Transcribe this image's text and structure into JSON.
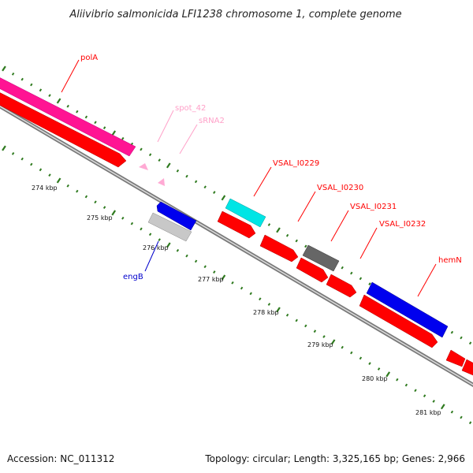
{
  "title": "Aliivibrio salmonicida LFI1238 chromosome 1, complete genome",
  "footer": {
    "accession": "Accession: NC_011312",
    "summary": "Topology: circular; Length: 3,325,165 bp; Genes: 2,966"
  },
  "kbp_labels": [
    "274 kbp",
    "275 kbp",
    "276 kbp",
    "277 kbp",
    "278 kbp",
    "279 kbp",
    "280 kbp",
    "281 kbp"
  ],
  "colors": {
    "backbone": "#888888",
    "tick": "#2f7a1f",
    "forward_cds": "#ff0000",
    "reverse_cds": "#0000ff",
    "rrna_pink": "#ff1493",
    "srna": "#ffaad4",
    "cyan_feature": "#00e5e5",
    "grey_feature": "#666666",
    "light_grey_feature": "#c8c8c8"
  },
  "genes": [
    {
      "name": "polA",
      "color": "#ff0000"
    },
    {
      "name": "spot_42",
      "color": "#ffa0c8"
    },
    {
      "name": "sRNA2",
      "color": "#ffa0c8"
    },
    {
      "name": "VSAL_I0229",
      "color": "#ff0000"
    },
    {
      "name": "VSAL_I0230",
      "color": "#ff0000"
    },
    {
      "name": "VSAL_I0231",
      "color": "#ff0000"
    },
    {
      "name": "VSAL_I0232",
      "color": "#ff0000"
    },
    {
      "name": "hemN",
      "color": "#ff0000"
    },
    {
      "name": "engB",
      "color": "#0000cc"
    }
  ]
}
